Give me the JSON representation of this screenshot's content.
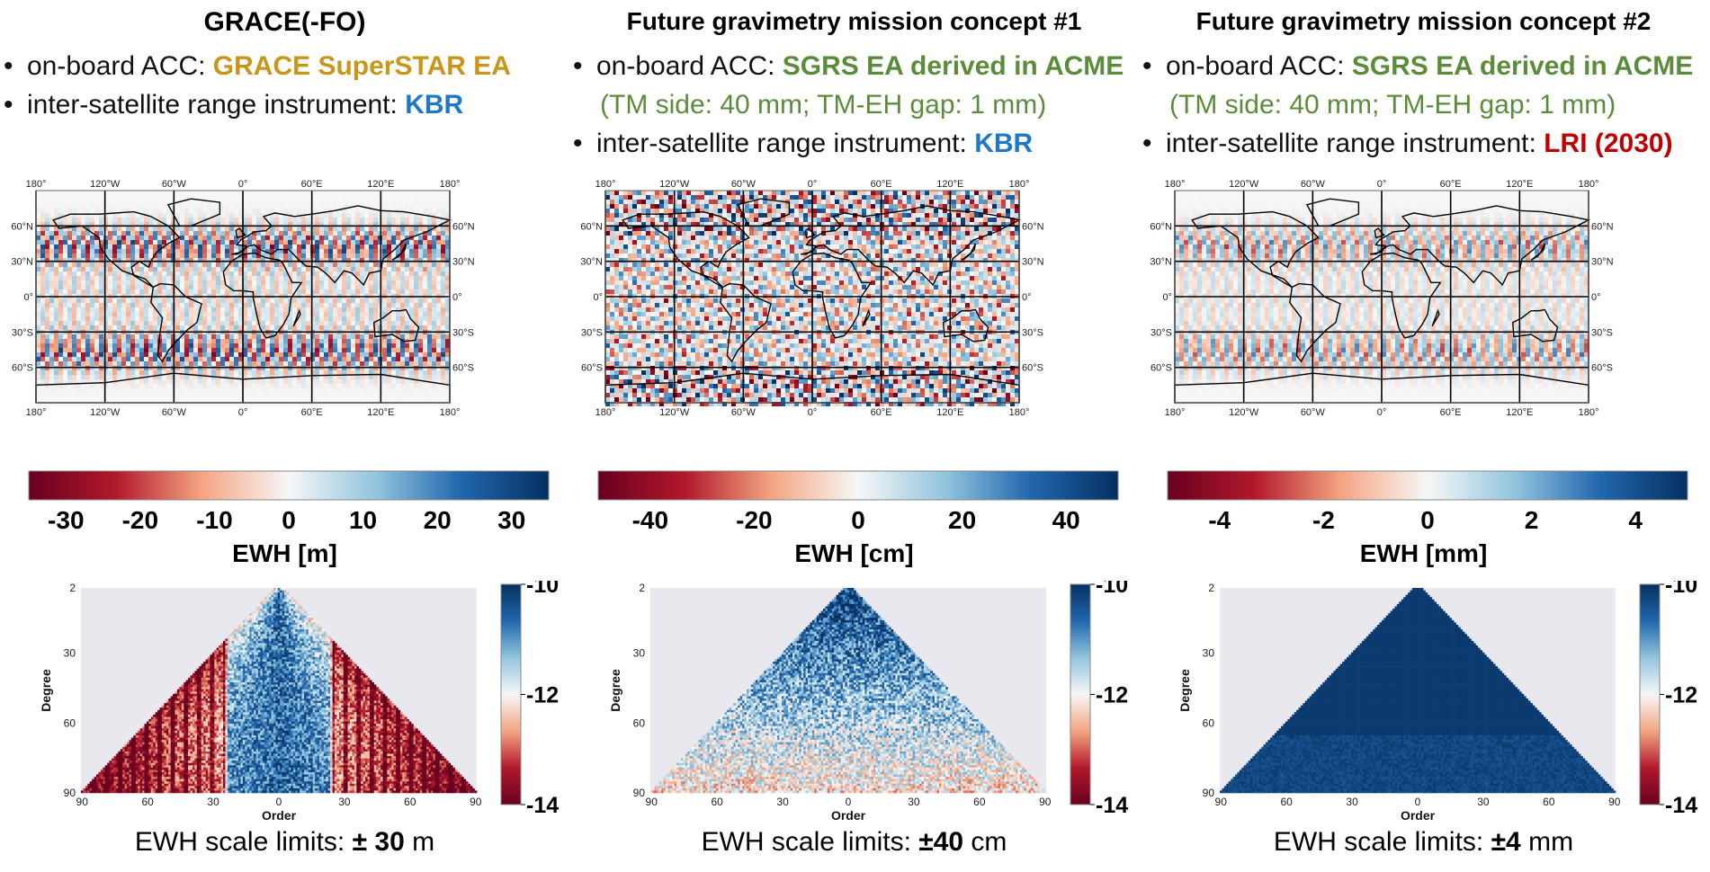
{
  "chart_data": [
    {
      "type": "heatmap",
      "title": "GRACE(-FO)",
      "bullets": [
        {
          "text": "on-board ACC: ",
          "highlight": "GRACE SuperSTAR EA",
          "highlight_color": "#C9961A"
        },
        {
          "text": "inter-satellite range instrument: ",
          "highlight": "KBR",
          "highlight_color": "#1E78C8"
        }
      ],
      "map": {
        "lon_ticks": [
          "180°",
          "120°W",
          "60°W",
          "0°",
          "60°E",
          "120°E",
          "180°"
        ],
        "lat_ticks": [
          "60°N",
          "30°N",
          "0°",
          "30°S",
          "60°S"
        ],
        "pattern": "zonal bands (north-south stripes)"
      },
      "colorbar": {
        "ticks": [
          "-30",
          "-20",
          "-10",
          "0",
          "10",
          "20",
          "30"
        ],
        "range": [
          -35,
          35
        ],
        "label": "EWH [m]"
      },
      "degree_order": {
        "ylabel": "Degree",
        "xlabel": "Order",
        "yticks": [
          "2",
          "30",
          "60",
          "90"
        ],
        "xticks": [
          "90",
          "60",
          "30",
          "0",
          "30",
          "60",
          "90"
        ],
        "colorbar_ticks": [
          "-10",
          "-12",
          "-14"
        ],
        "colorbar_range": [
          -14,
          -10
        ],
        "pattern": "near-sectorial red, low-order columns blue"
      },
      "caption": {
        "prefix": "EWH scale limits: ",
        "bold": "± 30",
        "suffix": " m"
      }
    },
    {
      "type": "heatmap",
      "title": "Future gravimetry mission concept #1",
      "bullets": [
        {
          "text": "on-board ACC: ",
          "highlight": "SGRS EA derived in ACME",
          "highlight_color": "#5B8C3A",
          "sub": "(TM side: 40 mm; TM-EH gap: 1 mm)"
        },
        {
          "text": "inter-satellite range instrument: ",
          "highlight": "KBR",
          "highlight_color": "#1E78C8"
        }
      ],
      "map": {
        "lon_ticks": [
          "180°",
          "120°W",
          "60°W",
          "0°",
          "60°E",
          "120°E",
          "180°"
        ],
        "lat_ticks": [
          "60°N",
          "30°N",
          "0°",
          "30°S",
          "60°S"
        ],
        "pattern": "isotropic noise"
      },
      "colorbar": {
        "ticks": [
          "-40",
          "-20",
          "0",
          "20",
          "40"
        ],
        "range": [
          -50,
          50
        ],
        "label": "EWH [cm]"
      },
      "degree_order": {
        "ylabel": "Degree",
        "xlabel": "Order",
        "yticks": [
          "2",
          "30",
          "60",
          "90"
        ],
        "xticks": [
          "90",
          "60",
          "30",
          "0",
          "30",
          "60",
          "90"
        ],
        "colorbar_ticks": [
          "-10",
          "-12",
          "-14"
        ],
        "colorbar_range": [
          -14,
          -10
        ],
        "pattern": "blue at low degree, fading to white at high degree"
      },
      "caption": {
        "prefix": "EWH scale limits: ",
        "bold": "±40",
        "suffix": " cm"
      }
    },
    {
      "type": "heatmap",
      "title": "Future gravimetry mission concept #2",
      "bullets": [
        {
          "text": "on-board ACC: ",
          "highlight": "SGRS EA derived in ACME",
          "highlight_color": "#5B8C3A",
          "sub": "(TM side: 40 mm; TM-EH gap: 1 mm)"
        },
        {
          "text": "inter-satellite range instrument: ",
          "highlight": "LRI (2030)",
          "highlight_color": "#C00000"
        }
      ],
      "map": {
        "lon_ticks": [
          "180°",
          "120°W",
          "60°W",
          "0°",
          "60°E",
          "120°E",
          "180°"
        ],
        "lat_ticks": [
          "60°N",
          "30°N",
          "0°",
          "30°S",
          "60°S"
        ],
        "pattern": "zonal bands, weaker"
      },
      "colorbar": {
        "ticks": [
          "-4",
          "-2",
          "0",
          "2",
          "4"
        ],
        "range": [
          -5,
          5
        ],
        "label": "EWH [mm]"
      },
      "degree_order": {
        "ylabel": "Degree",
        "xlabel": "Order",
        "yticks": [
          "2",
          "30",
          "60",
          "90"
        ],
        "xticks": [
          "90",
          "60",
          "30",
          "0",
          "30",
          "60",
          "90"
        ],
        "colorbar_ticks": [
          "-10",
          "-12",
          "-14"
        ],
        "colorbar_range": [
          -14,
          -10
        ],
        "pattern": "uniformly dark blue"
      },
      "caption": {
        "prefix": "EWH scale limits: ",
        "bold": "±4",
        "suffix": " mm"
      }
    }
  ],
  "colors": {
    "red_dark": "#67001F",
    "red": "#B2182B",
    "red_light": "#F4A582",
    "white": "#F7F7F7",
    "blue_light": "#92C5DE",
    "blue": "#2166AC",
    "blue_dark": "#053061",
    "plot_bg": "#E8E8EE"
  }
}
